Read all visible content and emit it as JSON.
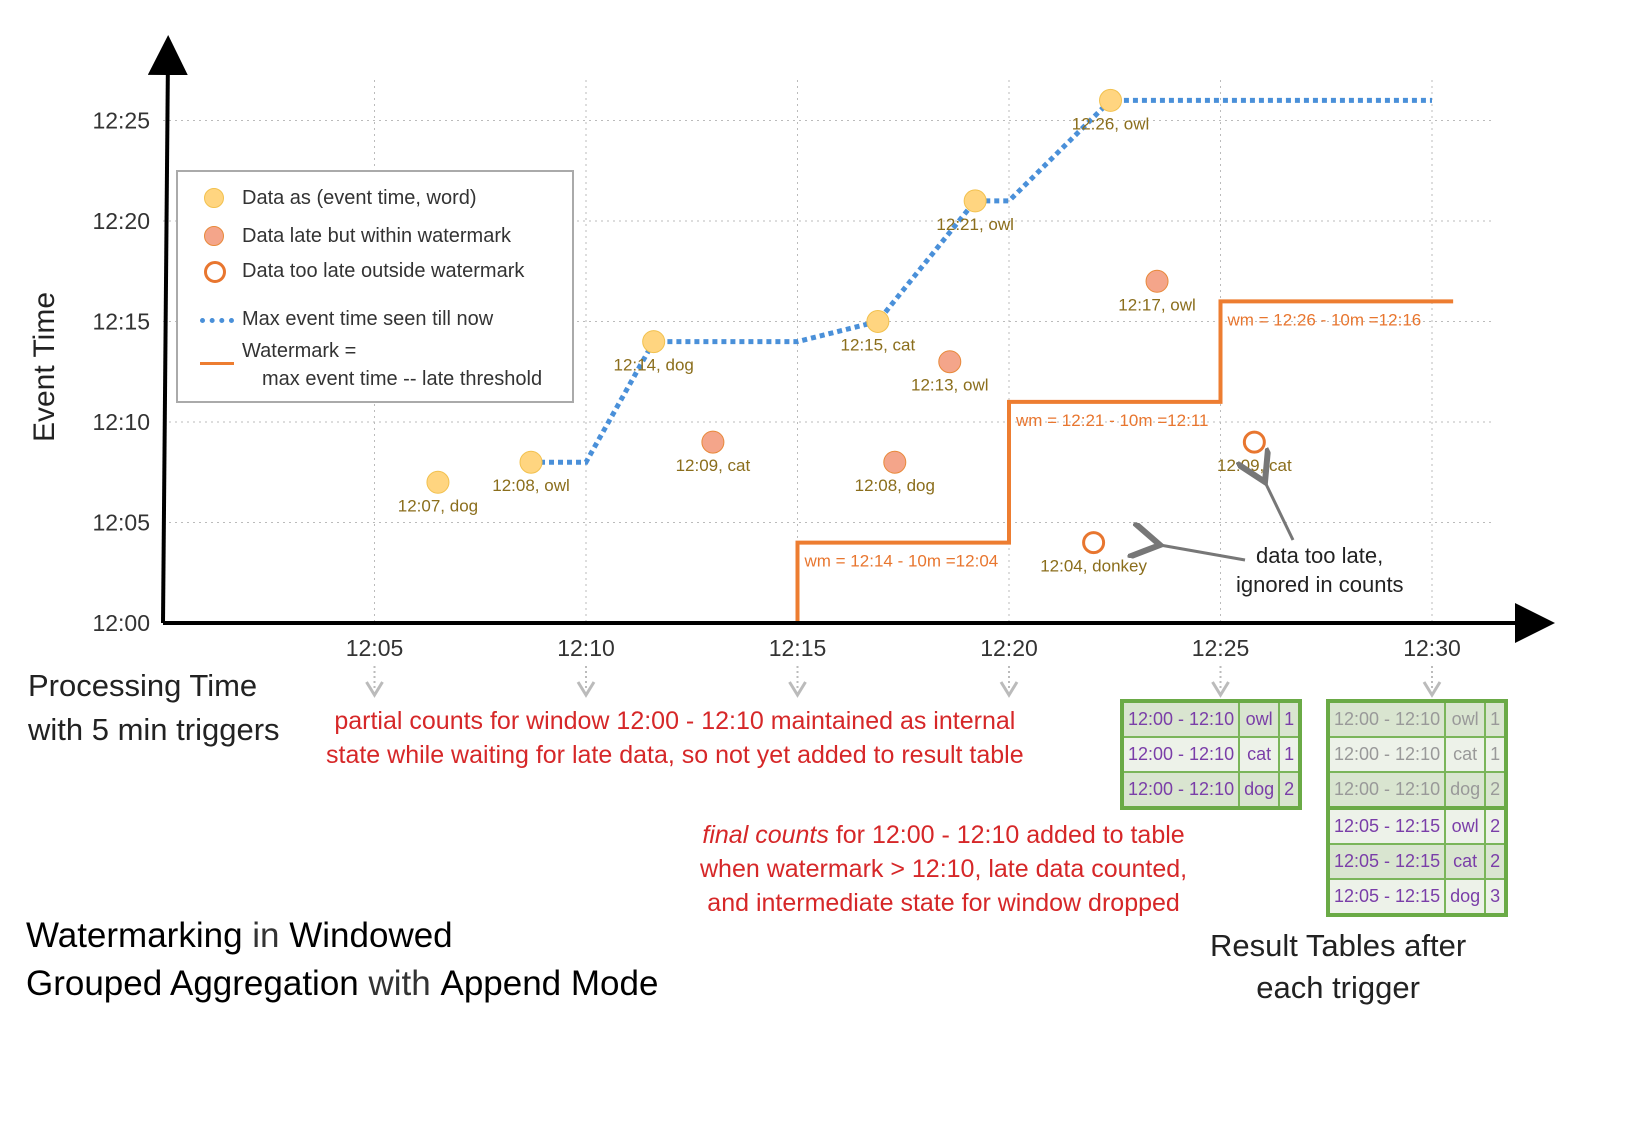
{
  "title": {
    "parts": [
      [
        "Watermarking",
        true
      ],
      [
        " in ",
        false
      ],
      [
        "Windowed",
        true
      ]
    ],
    "parts2": [
      [
        "Grouped Aggregation",
        true
      ],
      [
        " with ",
        false
      ],
      [
        "Append Mode",
        true
      ]
    ]
  },
  "y_axis_label": "Event Time",
  "x_axis_label_1": "Processing Time",
  "x_axis_label_2": "with 5 min triggers",
  "y_ticks": [
    "12:00",
    "12:05",
    "12:10",
    "12:15",
    "12:20",
    "12:25"
  ],
  "x_ticks": [
    "12:05",
    "12:10",
    "12:15",
    "12:20",
    "12:25",
    "12:30"
  ],
  "colors": {
    "on_time": "#ffd580",
    "late": "#f4a58a",
    "too_late": "#e8762f",
    "max_line": "#4a90d9",
    "watermark": "#ed7d31",
    "table_border": "#6aaa46",
    "table_text": "#7a3ea8",
    "note": "#d62728"
  },
  "legend": {
    "on_time": "Data as (event time, word)",
    "late": "Data late but within watermark",
    "too_late": "Data too late outside watermark",
    "max_line": "Max event time seen till now",
    "watermark_1": "Watermark =",
    "watermark_2": "max event time -- late threshold"
  },
  "chart_data": {
    "type": "scatter",
    "x_unit": "minutes after 12:00 (processing time)",
    "y_unit": "minutes after 12:00 (event time)",
    "xlim": [
      0,
      30
    ],
    "ylim": [
      0,
      25
    ],
    "points": [
      {
        "label": "12:07, dog",
        "x": 6.5,
        "y": 7,
        "kind": "on_time"
      },
      {
        "label": "12:08, owl",
        "x": 8.7,
        "y": 8,
        "kind": "on_time"
      },
      {
        "label": "12:14, dog",
        "x": 11.6,
        "y": 14,
        "kind": "on_time"
      },
      {
        "label": "12:09, cat",
        "x": 13.0,
        "y": 9,
        "kind": "late"
      },
      {
        "label": "12:15, cat",
        "x": 16.9,
        "y": 15,
        "kind": "on_time"
      },
      {
        "label": "12:08, dog",
        "x": 17.3,
        "y": 8,
        "kind": "late"
      },
      {
        "label": "12:13, owl",
        "x": 18.6,
        "y": 13,
        "kind": "late"
      },
      {
        "label": "12:21, owl",
        "x": 19.2,
        "y": 21,
        "kind": "on_time"
      },
      {
        "label": "12:04, donkey",
        "x": 22.0,
        "y": 4,
        "kind": "too_late"
      },
      {
        "label": "12:26, owl",
        "x": 22.4,
        "y": 26,
        "kind": "on_time"
      },
      {
        "label": "12:17, owl",
        "x": 23.5,
        "y": 17,
        "kind": "late"
      },
      {
        "label": "12:09, cat",
        "x": 25.8,
        "y": 9,
        "kind": "too_late"
      }
    ],
    "max_event_line": [
      [
        8.7,
        8
      ],
      [
        10,
        8
      ],
      [
        11.6,
        14
      ],
      [
        15,
        14
      ],
      [
        16.9,
        15
      ],
      [
        19.2,
        21
      ],
      [
        20,
        21
      ],
      [
        22.4,
        26
      ],
      [
        30,
        26
      ]
    ],
    "watermark_line": [
      [
        15,
        0
      ],
      [
        15,
        4
      ],
      [
        20,
        4
      ],
      [
        20,
        11
      ],
      [
        25,
        11
      ],
      [
        25,
        16
      ],
      [
        30.5,
        16
      ]
    ],
    "watermark_labels": [
      {
        "text": "wm = 12:14 - 10m =12:04",
        "x": 15,
        "y": 4
      },
      {
        "text": "wm = 12:21 - 10m =12:11",
        "x": 20,
        "y": 11
      },
      {
        "text": "wm = 12:26 - 10m =12:16",
        "x": 25,
        "y": 16
      }
    ]
  },
  "annotations": {
    "too_late_1": "data too late,",
    "too_late_2": "ignored in counts",
    "partial_1": "partial counts for window 12:00 - 12:10 maintained as internal",
    "partial_2": "state while waiting for late data, so not yet added  to result table",
    "final_em": "final counts",
    "final_1": " for 12:00 - 12:10 added to table",
    "final_2": "when watermark > 12:10, late data counted,",
    "final_3": "and intermediate state for window dropped",
    "result_1": "Result Tables after",
    "result_2": "each trigger"
  },
  "table_1225": [
    [
      "12:00 - 12:10",
      "owl",
      "1"
    ],
    [
      "12:00 - 12:10",
      "cat",
      "1"
    ],
    [
      "12:00 - 12:10",
      "dog",
      "2"
    ]
  ],
  "table_1230": [
    [
      "12:00 - 12:10",
      "owl",
      "1"
    ],
    [
      "12:00 - 12:10",
      "cat",
      "1"
    ],
    [
      "12:00 - 12:10",
      "dog",
      "2"
    ],
    [
      "12:05 - 12:15",
      "owl",
      "2"
    ],
    [
      "12:05 - 12:15",
      "cat",
      "2"
    ],
    [
      "12:05 - 12:15",
      "dog",
      "3"
    ]
  ]
}
